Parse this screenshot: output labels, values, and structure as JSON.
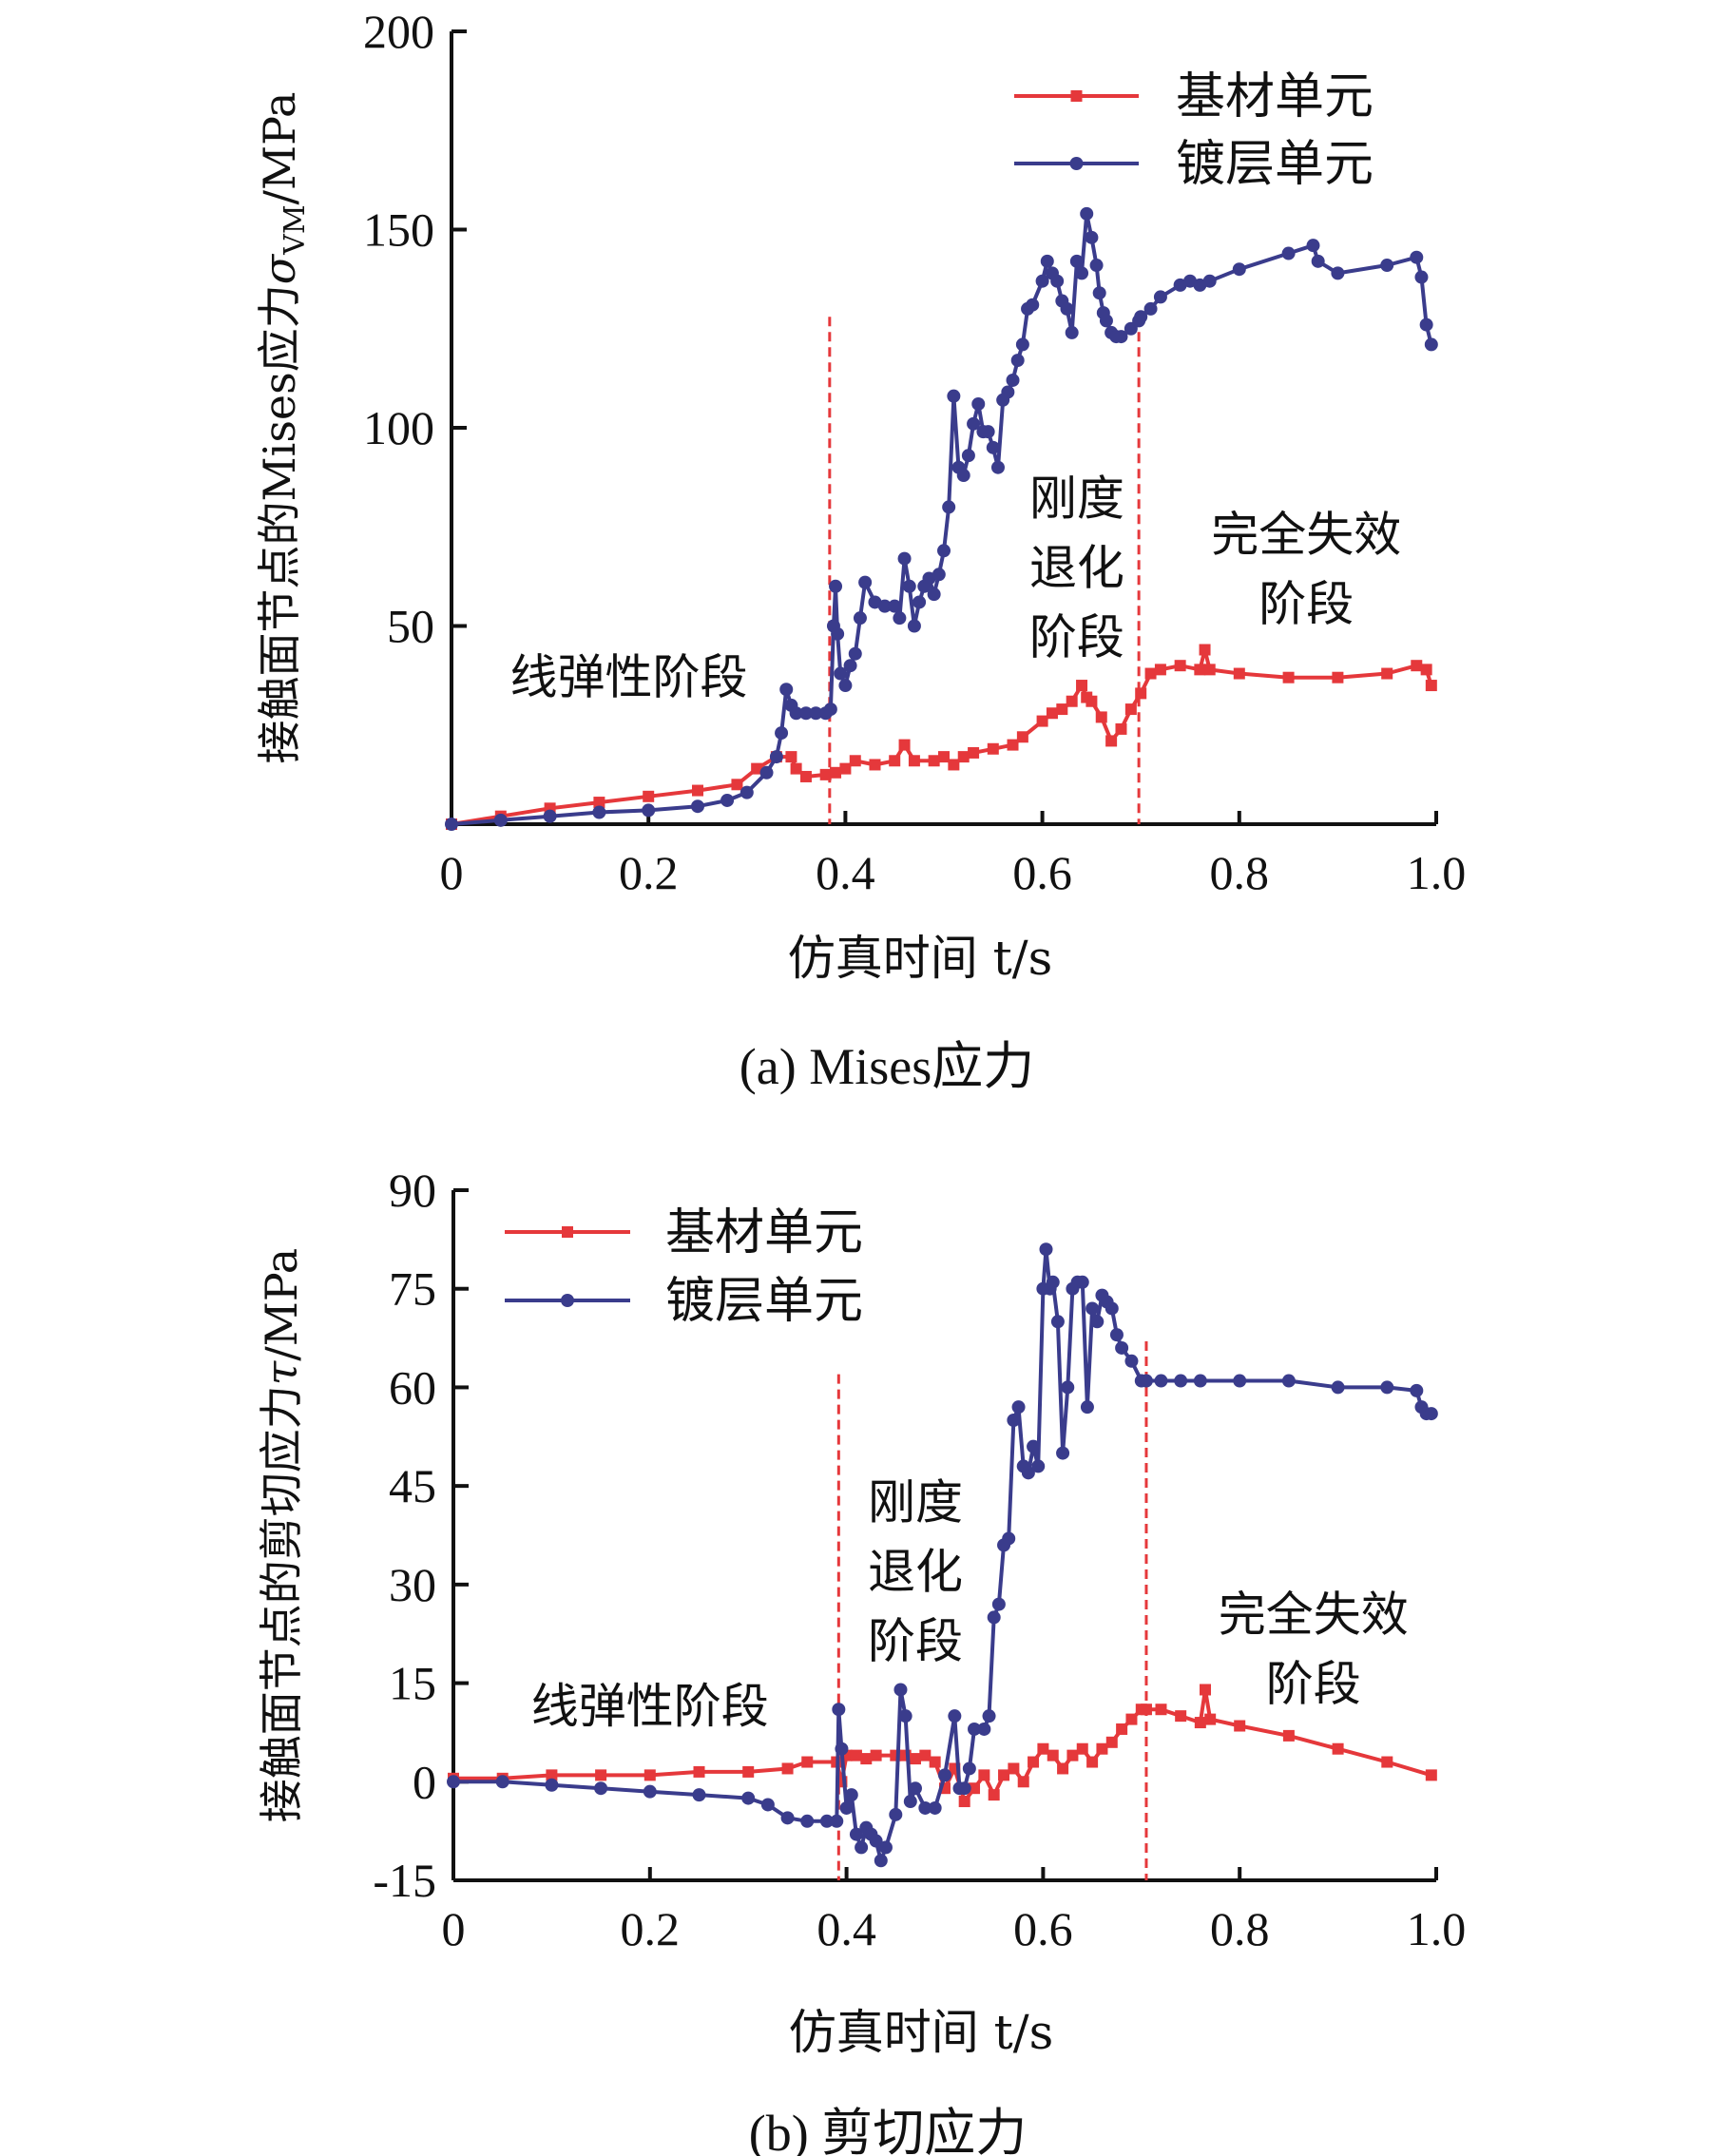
{
  "colors": {
    "substrate": "#e5383b",
    "coating": "#3a3c8c",
    "divider": "#e5383b",
    "axis": "#111111"
  },
  "chart_data": [
    {
      "type": "line",
      "panel": "a",
      "caption": "(a) Mises应力",
      "xlabel": "仿真时间 t/s",
      "ylabel_main": "接触面节点的Mises应力",
      "ylabel_symbol": "σ",
      "ylabel_subscript": "VM",
      "ylabel_unit": "/MPa",
      "xlim": [
        0,
        1.0
      ],
      "ylim": [
        0,
        200
      ],
      "xticks": [
        0,
        0.2,
        0.4,
        0.6,
        0.8,
        1.0
      ],
      "xtick_labels": [
        "0",
        "0.2",
        "0.4",
        "0.6",
        "0.8",
        "1.0"
      ],
      "yticks": [
        50,
        100,
        150,
        200
      ],
      "ytick_labels": [
        "50",
        "100",
        "150",
        "200"
      ],
      "legend_position": "top-right",
      "stage_dividers": [
        {
          "x": 0.384,
          "ytop": 128
        },
        {
          "x": 0.698,
          "ytop": 128
        }
      ],
      "annotations": [
        {
          "lines": [
            "线弹性阶段"
          ],
          "x": 0.18,
          "y": 33
        },
        {
          "lines": [
            "刚度",
            "退化",
            "阶段"
          ],
          "x": 0.635,
          "y": 78
        },
        {
          "lines": [
            "完全失效",
            "阶段"
          ],
          "x": 0.868,
          "y": 69
        }
      ],
      "series": [
        {
          "name": "基材单元",
          "key": "substrate",
          "marker": "square",
          "x": [
            0,
            0.05,
            0.1,
            0.15,
            0.2,
            0.25,
            0.29,
            0.31,
            0.33,
            0.345,
            0.35,
            0.36,
            0.38,
            0.39,
            0.4,
            0.41,
            0.43,
            0.45,
            0.46,
            0.47,
            0.49,
            0.5,
            0.51,
            0.52,
            0.53,
            0.55,
            0.57,
            0.58,
            0.6,
            0.61,
            0.62,
            0.63,
            0.64,
            0.645,
            0.65,
            0.66,
            0.67,
            0.68,
            0.69,
            0.7,
            0.71,
            0.72,
            0.74,
            0.76,
            0.765,
            0.77,
            0.8,
            0.85,
            0.9,
            0.95,
            0.98,
            0.99,
            0.995
          ],
          "y": [
            0,
            2,
            4,
            5.5,
            7,
            8.5,
            10,
            14,
            17,
            17,
            14,
            12,
            12.5,
            13,
            14,
            16,
            15,
            16,
            20,
            16,
            16,
            17,
            15,
            17,
            18,
            19,
            20,
            22,
            26,
            28,
            29,
            31,
            35,
            32,
            31,
            27,
            21,
            24,
            29,
            33,
            38,
            39,
            40,
            39,
            44,
            39,
            38,
            37,
            37,
            38,
            40,
            39,
            35
          ]
        },
        {
          "name": "镀层单元",
          "key": "coating",
          "marker": "circle",
          "x": [
            0,
            0.05,
            0.1,
            0.15,
            0.2,
            0.25,
            0.28,
            0.3,
            0.32,
            0.33,
            0.335,
            0.34,
            0.345,
            0.35,
            0.36,
            0.37,
            0.38,
            0.385,
            0.388,
            0.39,
            0.392,
            0.395,
            0.4,
            0.405,
            0.41,
            0.415,
            0.42,
            0.43,
            0.44,
            0.45,
            0.455,
            0.46,
            0.465,
            0.47,
            0.475,
            0.48,
            0.485,
            0.49,
            0.495,
            0.5,
            0.505,
            0.51,
            0.515,
            0.52,
            0.525,
            0.53,
            0.535,
            0.54,
            0.545,
            0.55,
            0.555,
            0.56,
            0.565,
            0.57,
            0.575,
            0.58,
            0.585,
            0.59,
            0.6,
            0.605,
            0.61,
            0.615,
            0.62,
            0.625,
            0.63,
            0.635,
            0.64,
            0.645,
            0.65,
            0.655,
            0.658,
            0.662,
            0.665,
            0.67,
            0.675,
            0.68,
            0.69,
            0.698,
            0.7,
            0.71,
            0.72,
            0.74,
            0.75,
            0.76,
            0.77,
            0.8,
            0.85,
            0.875,
            0.88,
            0.9,
            0.95,
            0.98,
            0.985,
            0.99,
            0.995
          ],
          "y": [
            0,
            1,
            2,
            3,
            3.5,
            4.5,
            6,
            8,
            13,
            17,
            23,
            34,
            30,
            28,
            28,
            28,
            28,
            29,
            50,
            60,
            48,
            38,
            35,
            40,
            43,
            52,
            61,
            56,
            55,
            55,
            52,
            67,
            60,
            50,
            56,
            60,
            62,
            58,
            63,
            69,
            80,
            108,
            90,
            88,
            93,
            101,
            106,
            99,
            99,
            95,
            90,
            107,
            109,
            112,
            117,
            121,
            130,
            131,
            137,
            142,
            139,
            137,
            132,
            130,
            124,
            142,
            139,
            154,
            148,
            141,
            134,
            129,
            127,
            124,
            123,
            123,
            125,
            127,
            128,
            130,
            133,
            136,
            137,
            136,
            137,
            140,
            144,
            146,
            142,
            139,
            141,
            143,
            138,
            126,
            121
          ]
        }
      ]
    },
    {
      "type": "line",
      "panel": "b",
      "caption": "(b) 剪切应力",
      "xlabel": "仿真时间 t/s",
      "ylabel_main": "接触面节点的剪切应力",
      "ylabel_symbol": "τ",
      "ylabel_subscript": "",
      "ylabel_unit": "/MPa",
      "xlim": [
        0,
        1.0
      ],
      "ylim": [
        -15,
        90
      ],
      "xticks": [
        0,
        0.2,
        0.4,
        0.6,
        0.8,
        1.0
      ],
      "xtick_labels": [
        "0",
        "0.2",
        "0.4",
        "0.6",
        "0.8",
        "1.0"
      ],
      "yticks": [
        -15,
        0,
        15,
        30,
        45,
        60,
        75,
        90
      ],
      "ytick_labels": [
        "-15",
        "0",
        "15",
        "30",
        "45",
        "60",
        "75",
        "90"
      ],
      "legend_position": "top-left",
      "stage_dividers": [
        {
          "x": 0.392,
          "ytop": 62
        },
        {
          "x": 0.705,
          "ytop": 67
        }
      ],
      "annotations": [
        {
          "lines": [
            "线弹性阶段"
          ],
          "x": 0.2,
          "y": 9
        },
        {
          "lines": [
            "刚度",
            "退化",
            "阶段"
          ],
          "x": 0.47,
          "y": 40
        },
        {
          "lines": [
            "完全失效",
            "阶段"
          ],
          "x": 0.875,
          "y": 23
        }
      ],
      "series": [
        {
          "name": "基材单元",
          "key": "substrate",
          "marker": "square",
          "x": [
            0,
            0.05,
            0.1,
            0.15,
            0.2,
            0.25,
            0.3,
            0.34,
            0.36,
            0.39,
            0.395,
            0.4,
            0.41,
            0.42,
            0.43,
            0.45,
            0.46,
            0.47,
            0.48,
            0.49,
            0.5,
            0.51,
            0.52,
            0.53,
            0.54,
            0.55,
            0.56,
            0.57,
            0.58,
            0.59,
            0.6,
            0.61,
            0.62,
            0.63,
            0.64,
            0.65,
            0.66,
            0.67,
            0.68,
            0.69,
            0.7,
            0.705,
            0.72,
            0.74,
            0.76,
            0.765,
            0.77,
            0.8,
            0.85,
            0.9,
            0.95,
            0.995
          ],
          "y": [
            0.5,
            0.5,
            1,
            1,
            1,
            1.5,
            1.5,
            2,
            3,
            3,
            0,
            4,
            4,
            3.5,
            4,
            4,
            4,
            3.5,
            4,
            3,
            -1,
            2,
            -3,
            -1,
            1,
            -2,
            1,
            2,
            0,
            3,
            5,
            4,
            2,
            4,
            5,
            3,
            5,
            6,
            8,
            9.5,
            11,
            11,
            11,
            10,
            9,
            14,
            9.5,
            8.5,
            7,
            5,
            3,
            1
          ]
        },
        {
          "name": "镀层单元",
          "key": "coating",
          "marker": "circle",
          "x": [
            0,
            0.05,
            0.1,
            0.15,
            0.2,
            0.25,
            0.3,
            0.32,
            0.34,
            0.36,
            0.38,
            0.39,
            0.392,
            0.395,
            0.4,
            0.405,
            0.41,
            0.415,
            0.42,
            0.425,
            0.43,
            0.435,
            0.44,
            0.45,
            0.455,
            0.46,
            0.465,
            0.47,
            0.48,
            0.49,
            0.5,
            0.51,
            0.515,
            0.52,
            0.525,
            0.53,
            0.54,
            0.545,
            0.55,
            0.555,
            0.56,
            0.565,
            0.57,
            0.575,
            0.58,
            0.585,
            0.59,
            0.595,
            0.6,
            0.603,
            0.607,
            0.61,
            0.615,
            0.62,
            0.625,
            0.63,
            0.635,
            0.64,
            0.645,
            0.65,
            0.655,
            0.66,
            0.665,
            0.67,
            0.675,
            0.68,
            0.69,
            0.7,
            0.705,
            0.72,
            0.74,
            0.76,
            0.8,
            0.85,
            0.9,
            0.95,
            0.98,
            0.985,
            0.99,
            0.995
          ],
          "y": [
            0,
            0,
            -0.5,
            -1,
            -1.5,
            -2,
            -2.5,
            -3.5,
            -5.5,
            -6,
            -6,
            -6,
            11,
            5,
            -4,
            -2,
            -8,
            -10,
            -7,
            -8,
            -9,
            -12,
            -10,
            -5,
            14,
            10,
            -3,
            -1,
            -4,
            -4,
            1,
            10,
            -1,
            -1,
            2,
            8,
            8,
            10,
            25,
            27,
            36,
            37,
            55,
            57,
            48,
            47,
            51,
            48,
            75,
            81,
            75,
            76,
            70,
            50,
            60,
            75,
            76,
            76,
            57,
            72,
            70,
            74,
            73,
            72,
            68,
            66,
            64,
            61,
            61,
            61,
            61,
            61,
            61,
            61,
            60,
            60,
            59.5,
            57,
            56,
            56
          ]
        }
      ]
    }
  ]
}
